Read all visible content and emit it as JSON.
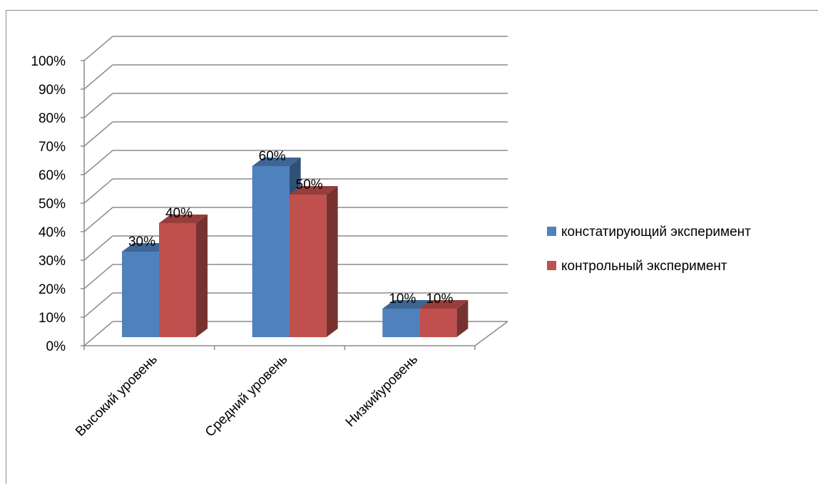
{
  "chart_data": {
    "type": "bar",
    "title": "",
    "xlabel": "",
    "ylabel": "",
    "ylim": [
      0,
      100
    ],
    "ytick_step": 10,
    "ytick_suffix": "%",
    "categories": [
      "Высокий уровень",
      "Средний уровень",
      "Низкийуровень"
    ],
    "series": [
      {
        "name": "констатирующий эксперимент",
        "values": [
          30,
          60,
          10
        ],
        "color": "#4f81bd"
      },
      {
        "name": "контрольный эксперимент",
        "values": [
          40,
          50,
          10
        ],
        "color": "#c0504d"
      }
    ],
    "data_labels": [
      [
        "30%",
        "60%",
        "10%"
      ],
      [
        "40%",
        "50%",
        "10%"
      ]
    ],
    "legend_position": "right",
    "grid": true,
    "three_d": true
  }
}
